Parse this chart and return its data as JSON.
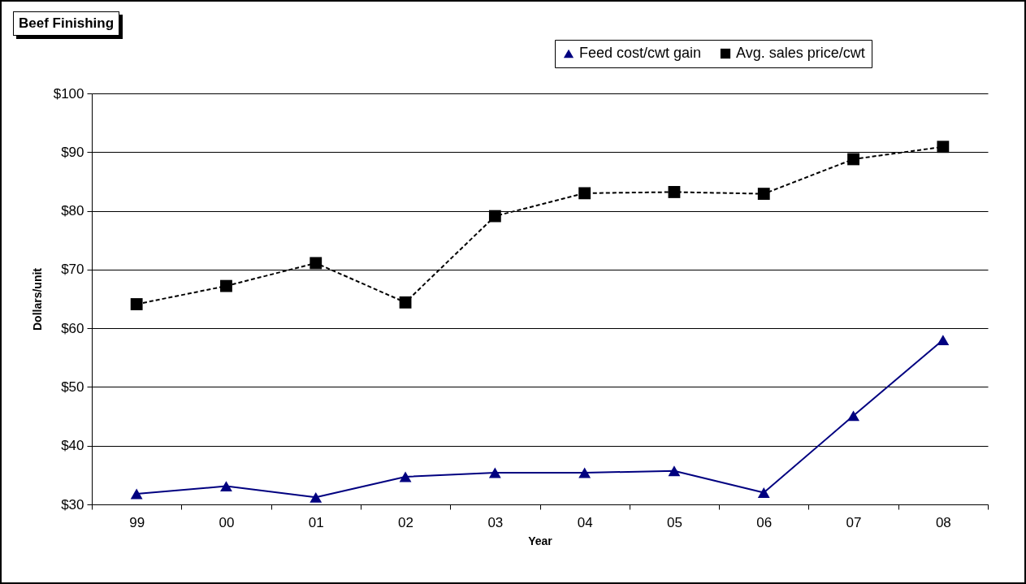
{
  "chart_data": {
    "type": "line",
    "title": "Beef Finishing",
    "xlabel": "Year",
    "ylabel": "Dollars/unit",
    "categories": [
      "99",
      "00",
      "01",
      "02",
      "03",
      "04",
      "05",
      "06",
      "07",
      "08"
    ],
    "series": [
      {
        "name": "Feed cost/cwt gain",
        "color": "#000080",
        "marker": "triangle",
        "line_style": "solid",
        "values": [
          31.8,
          33.1,
          31.2,
          34.7,
          35.4,
          35.4,
          35.7,
          32.0,
          45.1,
          58.0
        ]
      },
      {
        "name": "Avg. sales price/cwt",
        "color": "#000000",
        "marker": "square",
        "line_style": "dashed",
        "values": [
          64.1,
          67.2,
          71.1,
          64.4,
          79.1,
          83.0,
          83.2,
          82.9,
          88.8,
          90.9
        ]
      }
    ],
    "ylim": [
      30,
      100
    ],
    "yticks": [
      {
        "value": 30,
        "label": "$30"
      },
      {
        "value": 40,
        "label": "$40"
      },
      {
        "value": 50,
        "label": "$50"
      },
      {
        "value": 60,
        "label": "$60"
      },
      {
        "value": 70,
        "label": "$70"
      },
      {
        "value": 80,
        "label": "$80"
      },
      {
        "value": 90,
        "label": "$90"
      },
      {
        "value": 100,
        "label": "$100"
      }
    ],
    "grid": "y",
    "legend": "top right"
  }
}
